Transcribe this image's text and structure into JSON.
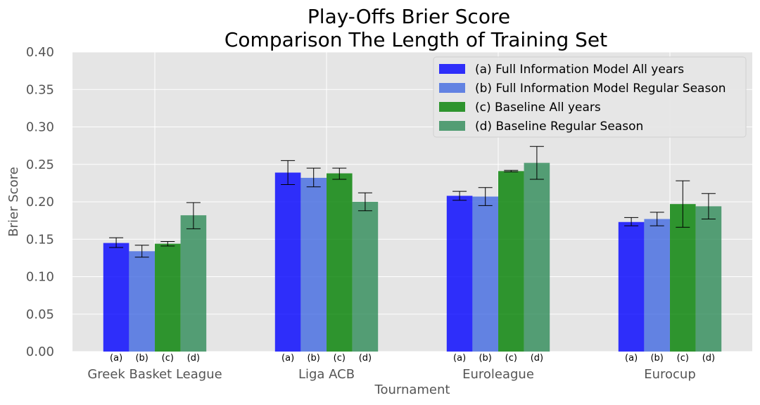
{
  "chart_data": {
    "type": "bar",
    "title_lines": [
      "Play-Offs Brier Score",
      "Comparison The Length of Training Set"
    ],
    "xlabel": "Tournament",
    "ylabel": "Brier Score",
    "ylim": [
      0,
      0.4
    ],
    "yticks": [
      "0.00",
      "0.05",
      "0.10",
      "0.15",
      "0.20",
      "0.25",
      "0.30",
      "0.35",
      "0.40"
    ],
    "categories": [
      "Greek Basket League",
      "Liga ACB",
      "Euroleague",
      "Eurocup"
    ],
    "sub_labels": [
      "(a)",
      "(b)",
      "(c)",
      "(d)"
    ],
    "grid": true,
    "legend_position": "top-right",
    "series": [
      {
        "name": "(a) Full Information Model All years",
        "color": "#0000ff",
        "values": [
          0.145,
          0.239,
          0.208,
          0.173
        ],
        "err_low": [
          0.139,
          0.223,
          0.202,
          0.168
        ],
        "err_high": [
          0.152,
          0.255,
          0.214,
          0.179
        ]
      },
      {
        "name": "(b) Full Information Model Regular Season",
        "color": "#4169e1",
        "values": [
          0.134,
          0.232,
          0.207,
          0.177
        ],
        "err_low": [
          0.126,
          0.22,
          0.195,
          0.168
        ],
        "err_high": [
          0.142,
          0.245,
          0.219,
          0.186
        ]
      },
      {
        "name": "(c) Baseline All years",
        "color": "#008000",
        "values": [
          0.144,
          0.238,
          0.241,
          0.197
        ],
        "err_low": [
          0.141,
          0.23,
          0.24,
          0.166
        ],
        "err_high": [
          0.147,
          0.245,
          0.242,
          0.228
        ]
      },
      {
        "name": "(d) Baseline Regular Season",
        "color": "#2e8b57",
        "values": [
          0.182,
          0.2,
          0.252,
          0.194
        ],
        "err_low": [
          0.164,
          0.188,
          0.23,
          0.177
        ],
        "err_high": [
          0.199,
          0.212,
          0.274,
          0.211
        ]
      }
    ]
  }
}
